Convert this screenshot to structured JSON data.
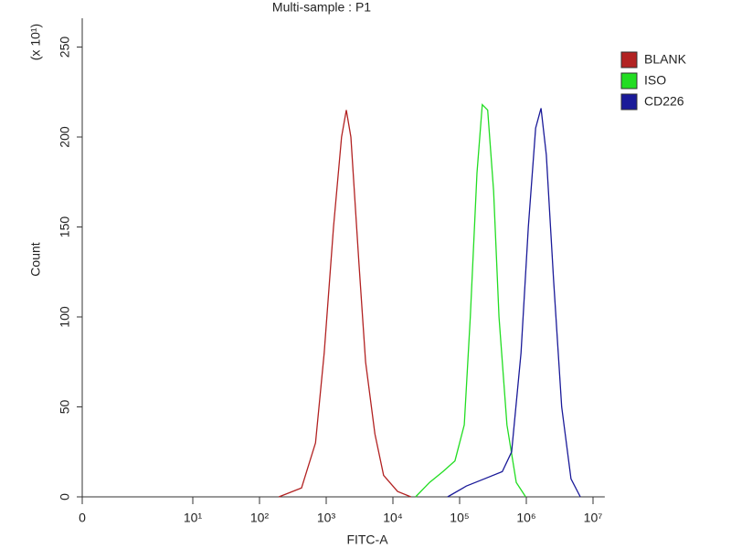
{
  "chart_data": {
    "type": "line",
    "title": "Multi-sample : P1",
    "xlabel": "FITC-A",
    "ylabel": "Count",
    "y_multiplier": "(x 10¹)",
    "xscale": "log",
    "xlim": [
      0,
      15000000
    ],
    "xticks": [
      0,
      {
        "value": 10,
        "label": "10¹"
      },
      {
        "value": 100,
        "label": "10²"
      },
      {
        "value": 1000,
        "label": "10³"
      },
      {
        "value": 10000,
        "label": "10⁴"
      },
      {
        "value": 100000,
        "label": "10⁵"
      },
      {
        "value": 1000000,
        "label": "10⁶"
      },
      {
        "value": 10000000,
        "label": "10⁷"
      }
    ],
    "ylim": [
      0,
      266
    ],
    "yticks": [
      0,
      50,
      100,
      150,
      200,
      250
    ],
    "legend": "right",
    "series": [
      {
        "name": "BLANK",
        "color": "#b22222",
        "x": [
          195,
          427,
          692,
          933,
          1288,
          1698,
          2000,
          2344,
          3090,
          3890,
          5370,
          7244,
          11750,
          18620
        ],
        "values": [
          0,
          5,
          30,
          80,
          150,
          200,
          215,
          200,
          130,
          75,
          35,
          12,
          3,
          0
        ]
      },
      {
        "name": "ISO",
        "color": "#22dd22",
        "x": [
          21880,
          35480,
          56230,
          85110,
          117500,
          144500,
          182000,
          218800,
          263000,
          323600,
          389000,
          512900,
          707900,
          977200
        ],
        "values": [
          0,
          8,
          14,
          20,
          40,
          100,
          180,
          218,
          215,
          170,
          100,
          40,
          8,
          0
        ]
      },
      {
        "name": "CD226",
        "color": "#1a1a99",
        "x": [
          66070,
          125900,
          234400,
          436500,
          602600,
          831800,
          1072000,
          1380000,
          1660000,
          1995000,
          2570000,
          3388000,
          4677000,
          6457000
        ],
        "values": [
          0,
          6,
          10,
          14,
          25,
          80,
          150,
          205,
          216,
          190,
          120,
          50,
          10,
          0
        ]
      }
    ]
  }
}
